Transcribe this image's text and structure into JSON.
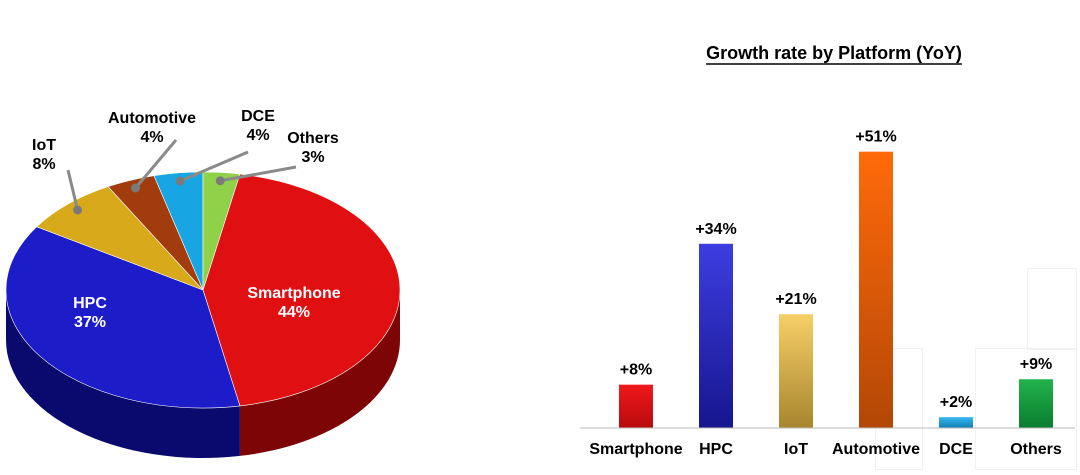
{
  "chart_data": [
    {
      "type": "pie",
      "title": "",
      "slices": [
        {
          "label": "Smartphone",
          "value_label": "44%",
          "value": 44,
          "color": "#e00f12",
          "dark": "#7d0505"
        },
        {
          "label": "HPC",
          "value_label": "37%",
          "value": 37,
          "color": "#1c1cc9",
          "dark": "#0a0a6e"
        },
        {
          "label": "IoT",
          "value_label": "8%",
          "value": 8,
          "color": "#d8a91a",
          "dark": "#7a5d06"
        },
        {
          "label": "Automotive",
          "value_label": "4%",
          "value": 4,
          "color": "#a33c0c",
          "dark": "#5a1f04"
        },
        {
          "label": "DCE",
          "value_label": "4%",
          "value": 4,
          "color": "#17a6e3",
          "dark": "#0b5f86"
        },
        {
          "label": "Others",
          "value_label": "3%",
          "value": 3,
          "color": "#8fd24a",
          "dark": "#4b7a20"
        }
      ]
    },
    {
      "type": "bar",
      "title": "Growth rate by Platform (YoY)",
      "categories": [
        "Smartphone",
        "HPC",
        "IoT",
        "Automotive",
        "DCE",
        "Others"
      ],
      "values": [
        8,
        34,
        21,
        51,
        2,
        9
      ],
      "value_labels": [
        "+8%",
        "+34%",
        "+21%",
        "+51%",
        "+2%",
        "+9%"
      ],
      "colors": [
        [
          "#f0181b",
          "#b80b0d"
        ],
        [
          "#3d3de0",
          "#16168f"
        ],
        [
          "#f7cf68",
          "#a8852e"
        ],
        [
          "#ff6a0a",
          "#b34706"
        ],
        [
          "#37b8f0",
          "#0f7fb3"
        ],
        [
          "#22b34d",
          "#0a7d2e"
        ]
      ],
      "ylim": [
        0,
        55
      ],
      "grid": false
    }
  ]
}
